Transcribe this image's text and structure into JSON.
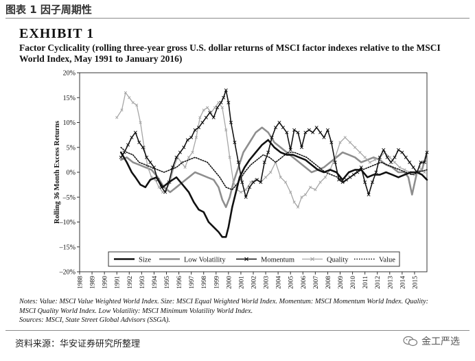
{
  "figure_title": "图表 1 因子周期性",
  "exhibit": "EXHIBIT 1",
  "subtitle": "Factor Cyclicality (rolling three-year gross U.S. dollar returns of MSCI factor indexes relative to the MSCI World Index, May 1991 to January 2016)",
  "notes_line1": "Notes: Value: MSCI Value Weighted World Index. Size: MSCI Equal Weighted World Index. Momentum: MSCI Momentum World Index. Quality:",
  "notes_line2": "MSCI Quality World Index. Low Volatility: MSCI Minimum Volatility World Index.",
  "notes_line3": "Sources: MSCI, State Street Global Advisors (SSGA).",
  "source_text": "资料来源：华安证券研究所整理",
  "brand_text": "金工严选",
  "chart_data": {
    "type": "line",
    "title": "",
    "xlabel": "",
    "ylabel": "Rolling 36 Month Excess Returns",
    "xlim": [
      1988,
      2016
    ],
    "ylim": [
      -20,
      20
    ],
    "yticks": [
      -20,
      -15,
      -10,
      -5,
      0,
      5,
      10,
      15,
      20
    ],
    "ytick_labels": [
      "–20%",
      "–15%",
      "–10%",
      "–5%",
      "0%",
      "5%",
      "10%",
      "15%",
      "20%"
    ],
    "xticks": [
      1988,
      1989,
      1990,
      1991,
      1992,
      1993,
      1994,
      1995,
      1996,
      1997,
      1998,
      1999,
      2000,
      2001,
      2002,
      2003,
      2004,
      2005,
      2006,
      2007,
      2008,
      2009,
      2010,
      2011,
      2012,
      2013,
      2014,
      2015
    ],
    "grid": false,
    "legend": "bottom-inside",
    "series": [
      {
        "name": "Size",
        "style": "thick",
        "color": "#111111",
        "x": [
          1991.33,
          1991.8,
          1992.2,
          1992.5,
          1992.9,
          1993.3,
          1993.7,
          1994.2,
          1994.7,
          1995.2,
          1995.8,
          1996.3,
          1996.8,
          1997.2,
          1997.6,
          1998.0,
          1998.4,
          1998.8,
          1999.2,
          1999.5,
          1999.8,
          2000.0,
          2000.3,
          2000.6,
          2000.9,
          2001.3,
          2001.7,
          2002.2,
          2002.7,
          2003.2,
          2003.7,
          2004.2,
          2004.7,
          2005.2,
          2005.7,
          2006.2,
          2006.7,
          2007.2,
          2007.7,
          2008.2,
          2008.7,
          2009.2,
          2009.7,
          2010.2,
          2010.7,
          2011.2,
          2011.7,
          2012.2,
          2012.7,
          2013.2,
          2013.7,
          2014.2,
          2014.7,
          2015.2,
          2015.6,
          2016.0
        ],
        "y": [
          4.0,
          2.0,
          0.0,
          -1.0,
          -2.5,
          -3.0,
          -1.5,
          -1.0,
          -3.0,
          -2.0,
          -1.0,
          -2.5,
          -4.0,
          -6.0,
          -7.5,
          -8.0,
          -10.0,
          -11.0,
          -12.0,
          -13.0,
          -13.0,
          -11.0,
          -7.0,
          -4.0,
          -1.0,
          1.0,
          2.5,
          4.0,
          5.5,
          6.5,
          5.0,
          4.0,
          3.5,
          3.5,
          3.0,
          2.5,
          1.5,
          0.5,
          0.0,
          0.5,
          0.0,
          -1.5,
          0.0,
          0.5,
          0.5,
          -1.0,
          -0.5,
          -0.5,
          0.0,
          -0.5,
          -1.0,
          -0.5,
          0.0,
          0.0,
          -0.5,
          -1.5
        ]
      },
      {
        "name": "Low Volatility",
        "style": "thick-gray",
        "color": "#8e8e8e",
        "x": [
          1991.33,
          1991.8,
          1992.3,
          1992.8,
          1993.3,
          1993.8,
          1994.3,
          1994.8,
          1995.3,
          1995.8,
          1996.3,
          1996.8,
          1997.3,
          1997.8,
          1998.3,
          1998.8,
          1999.2,
          1999.5,
          1999.8,
          2000.1,
          2000.4,
          2000.8,
          2001.2,
          2001.7,
          2002.2,
          2002.7,
          2003.2,
          2003.7,
          2004.2,
          2004.7,
          2005.2,
          2005.7,
          2006.2,
          2006.7,
          2007.2,
          2007.7,
          2008.2,
          2008.7,
          2009.2,
          2009.7,
          2010.2,
          2010.7,
          2011.2,
          2011.7,
          2012.2,
          2012.7,
          2013.2,
          2013.7,
          2014.2,
          2014.5,
          2014.8,
          2015.2,
          2015.6,
          2016.0
        ],
        "y": [
          2.5,
          3.0,
          2.0,
          1.5,
          1.0,
          0.5,
          -1.0,
          -3.0,
          -4.0,
          -3.0,
          -2.0,
          -1.0,
          0.0,
          -0.5,
          -1.0,
          -1.5,
          -3.0,
          -5.5,
          -7.0,
          -5.0,
          -2.0,
          1.0,
          4.0,
          6.0,
          8.0,
          9.0,
          8.0,
          6.0,
          5.0,
          4.0,
          3.0,
          2.0,
          1.0,
          0.0,
          0.5,
          1.0,
          2.0,
          3.0,
          4.0,
          3.5,
          3.0,
          2.0,
          2.5,
          3.0,
          2.5,
          1.5,
          1.0,
          0.0,
          0.0,
          -1.0,
          -4.5,
          0.0,
          0.5,
          4.0
        ]
      },
      {
        "name": "Momentum",
        "style": "marker-x",
        "color": "#111111",
        "x": [
          1991.33,
          1991.6,
          1991.9,
          1992.2,
          1992.5,
          1992.8,
          1993.1,
          1993.4,
          1993.7,
          1994.0,
          1994.3,
          1994.6,
          1994.9,
          1995.2,
          1995.5,
          1995.8,
          1996.1,
          1996.4,
          1996.7,
          1997.0,
          1997.3,
          1997.6,
          1997.9,
          1998.2,
          1998.5,
          1998.8,
          1999.1,
          1999.4,
          1999.6,
          1999.8,
          2000.0,
          2000.2,
          2000.5,
          2000.8,
          2001.1,
          2001.4,
          2001.7,
          2002.0,
          2002.3,
          2002.6,
          2002.9,
          2003.2,
          2003.5,
          2003.8,
          2004.1,
          2004.4,
          2004.7,
          2005.0,
          2005.3,
          2005.6,
          2005.9,
          2006.2,
          2006.5,
          2006.8,
          2007.1,
          2007.4,
          2007.7,
          2008.0,
          2008.3,
          2008.6,
          2008.9,
          2009.2,
          2009.5,
          2009.8,
          2010.1,
          2010.4,
          2010.7,
          2011.0,
          2011.3,
          2011.6,
          2011.9,
          2012.2,
          2012.5,
          2012.8,
          2013.1,
          2013.4,
          2013.7,
          2014.0,
          2014.3,
          2014.6,
          2014.9,
          2015.2,
          2015.5,
          2015.8,
          2016.0
        ],
        "y": [
          3.0,
          4.0,
          5.5,
          7.0,
          8.0,
          6.0,
          5.0,
          3.0,
          2.0,
          1.0,
          -1.5,
          -3.0,
          -4.0,
          -2.0,
          1.0,
          3.0,
          4.0,
          5.0,
          6.5,
          7.0,
          8.5,
          9.0,
          10.0,
          11.0,
          12.0,
          11.0,
          13.0,
          14.0,
          15.0,
          16.5,
          14.0,
          10.0,
          6.0,
          2.0,
          -2.0,
          -5.0,
          -3.0,
          -2.0,
          -1.5,
          -2.0,
          2.0,
          4.0,
          7.0,
          9.0,
          10.0,
          9.0,
          8.0,
          4.5,
          8.5,
          8.0,
          5.0,
          8.0,
          8.5,
          8.0,
          9.0,
          8.0,
          7.0,
          8.5,
          6.0,
          2.0,
          -1.5,
          -2.0,
          -1.5,
          -1.0,
          -0.5,
          0.0,
          1.0,
          -2.0,
          -4.5,
          -2.0,
          0.0,
          3.0,
          4.5,
          3.0,
          2.0,
          3.0,
          4.5,
          4.0,
          3.0,
          2.0,
          1.0,
          0.0,
          2.0,
          2.0,
          4.0
        ]
      },
      {
        "name": "Quality",
        "style": "thin-gray-marker",
        "color": "#a5a5a5",
        "x": [
          1991.0,
          1991.4,
          1991.7,
          1992.0,
          1992.3,
          1992.6,
          1992.9,
          1993.2,
          1993.5,
          1993.8,
          1994.1,
          1994.4,
          1994.7,
          1995.0,
          1995.3,
          1995.6,
          1995.9,
          1996.2,
          1996.5,
          1996.8,
          1997.1,
          1997.4,
          1997.7,
          1998.0,
          1998.3,
          1998.6,
          1998.9,
          1999.2,
          1999.5,
          1999.8,
          2000.1,
          2000.4,
          2000.7,
          2001.0,
          2001.4,
          2001.8,
          2002.2,
          2002.6,
          2003.0,
          2003.4,
          2003.8,
          2004.2,
          2004.6,
          2005.0,
          2005.3,
          2005.6,
          2005.9,
          2006.2,
          2006.6,
          2007.0,
          2007.4,
          2007.8,
          2008.2,
          2008.6,
          2009.0,
          2009.4,
          2009.8,
          2010.2,
          2010.6,
          2011.0,
          2011.4,
          2011.8,
          2012.2,
          2012.6,
          2013.0,
          2013.4,
          2013.8,
          2014.2,
          2014.6,
          2015.0,
          2015.4,
          2015.8
        ],
        "y": [
          11.0,
          12.5,
          16.0,
          15.0,
          14.0,
          13.5,
          10.0,
          5.0,
          1.0,
          -1.0,
          -1.5,
          -3.0,
          -4.0,
          -3.5,
          -2.0,
          1.0,
          3.0,
          2.0,
          1.0,
          3.0,
          4.0,
          7.0,
          11.0,
          12.5,
          13.0,
          12.0,
          13.0,
          14.0,
          13.0,
          8.5,
          3.0,
          -2.0,
          -3.5,
          -4.0,
          -3.5,
          -2.0,
          -1.5,
          -2.0,
          -1.0,
          0.0,
          2.0,
          -1.0,
          -2.0,
          -4.0,
          -6.0,
          -7.0,
          -5.0,
          -4.5,
          -3.0,
          -3.5,
          -2.0,
          -1.0,
          0.5,
          3.0,
          6.0,
          7.0,
          6.0,
          5.0,
          4.0,
          3.0,
          2.0,
          2.5,
          3.0,
          4.0,
          3.0,
          2.0,
          1.0,
          0.5,
          0.0,
          -0.5,
          1.0,
          0.0
        ]
      },
      {
        "name": "Value",
        "style": "dotted",
        "color": "#111111",
        "x": [
          1991.33,
          1991.8,
          1992.3,
          1992.8,
          1993.3,
          1993.8,
          1994.3,
          1994.8,
          1995.3,
          1995.8,
          1996.3,
          1996.8,
          1997.3,
          1997.8,
          1998.3,
          1998.8,
          1999.3,
          1999.8,
          2000.3,
          2000.8,
          2001.3,
          2001.8,
          2002.3,
          2002.8,
          2003.3,
          2003.8,
          2004.3,
          2004.8,
          2005.3,
          2005.8,
          2006.3,
          2006.8,
          2007.3,
          2007.8,
          2008.3,
          2008.8,
          2009.3,
          2009.8,
          2010.3,
          2010.8,
          2011.3,
          2011.8,
          2012.3,
          2012.8,
          2013.3,
          2013.8,
          2014.3,
          2014.8,
          2015.3,
          2016.0
        ],
        "y": [
          5.0,
          4.0,
          3.5,
          2.0,
          1.5,
          1.0,
          0.5,
          0.0,
          0.5,
          1.0,
          2.0,
          2.5,
          3.0,
          2.5,
          2.0,
          0.5,
          -1.0,
          -3.0,
          -3.5,
          -2.0,
          0.0,
          1.5,
          2.5,
          3.5,
          3.0,
          2.0,
          3.0,
          4.0,
          4.0,
          3.5,
          3.0,
          2.0,
          1.0,
          0.0,
          -0.5,
          -1.0,
          -2.0,
          -1.0,
          0.0,
          0.5,
          1.0,
          1.5,
          2.0,
          1.5,
          1.0,
          0.5,
          0.0,
          -0.5,
          0.0,
          0.5
        ]
      }
    ]
  }
}
